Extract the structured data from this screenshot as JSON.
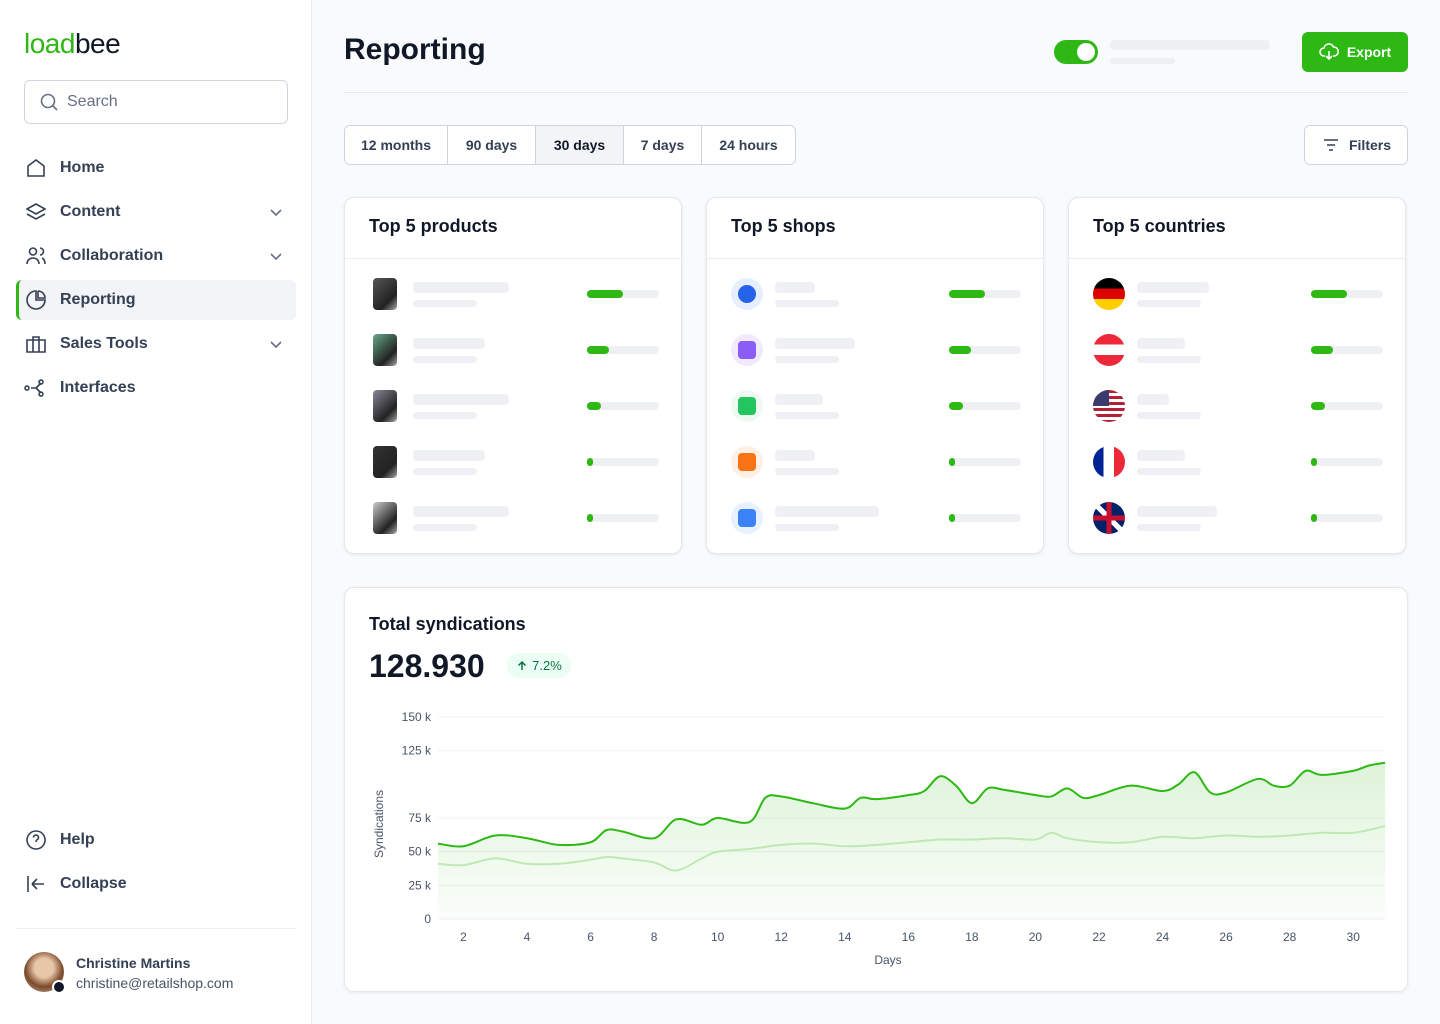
{
  "sidebar": {
    "logo_a": "load",
    "logo_b": "bee",
    "search": "Search",
    "nav": [
      "Home",
      "Content",
      "Collaboration",
      "Reporting",
      "Sales Tools",
      "Interfaces"
    ],
    "footer_nav": [
      "Help",
      "Collapse"
    ],
    "user": {
      "name": "Christine Martins",
      "email": "christine@retailshop.com"
    }
  },
  "header": {
    "title": "Reporting",
    "export": "Export"
  },
  "ranges": [
    "12 months",
    "90 days",
    "30 days",
    "7 days",
    "24 hours"
  ],
  "filters": "Filters",
  "cards": [
    "Top 5 products",
    "Top 5 shops",
    "Top 5 countries"
  ],
  "total": {
    "title": "Total syndications",
    "value": "128.930",
    "change": "7.2%"
  },
  "chart_data": {
    "type": "line",
    "ylabel": "Syndications",
    "xlabel": "Days",
    "xlim": [
      1.2,
      31
    ],
    "xticks": [
      2,
      4,
      6,
      8,
      10,
      12,
      14,
      16,
      18,
      20,
      22,
      24,
      26,
      28,
      30
    ],
    "ylim": [
      0,
      150000
    ],
    "yticks": [
      {
        "value": 0,
        "label": "0"
      },
      {
        "value": 25000,
        "label": "25 k"
      },
      {
        "value": 50000,
        "label": "50 k"
      },
      {
        "value": 75000,
        "label": "75 k"
      },
      {
        "value": 125000,
        "label": "125 k"
      },
      {
        "value": 150000,
        "label": "150 k"
      }
    ],
    "grid": true,
    "series": [
      {
        "color": "#2db814",
        "area": true,
        "x": [
          1.2,
          2,
          3,
          4,
          5,
          6,
          6.5,
          7,
          8,
          8.7,
          9.5,
          10,
          11,
          11.5,
          12,
          13,
          14,
          14.5,
          15,
          16,
          16.5,
          17,
          17.5,
          18,
          18.5,
          19,
          20,
          20.5,
          21,
          21.5,
          22,
          23,
          24,
          24.5,
          25,
          25.5,
          26,
          27,
          27.5,
          28,
          28.5,
          29,
          30,
          30.5,
          31
        ],
        "values": [
          56000,
          54000,
          62000,
          60000,
          55000,
          57000,
          66000,
          65000,
          60000,
          74000,
          70000,
          75000,
          72000,
          90000,
          91000,
          86000,
          82000,
          90000,
          89000,
          92000,
          95000,
          106000,
          99000,
          86000,
          97000,
          96000,
          92000,
          91000,
          97000,
          90000,
          92000,
          99000,
          95000,
          100000,
          109000,
          94000,
          94000,
          104000,
          99000,
          99000,
          110000,
          107000,
          110000,
          114000,
          116000
        ]
      },
      {
        "color": "#bfe8b3",
        "area": false,
        "x": [
          1.2,
          2,
          3,
          4,
          5,
          6,
          6.5,
          7,
          8,
          8.7,
          9.5,
          10,
          11,
          12,
          13,
          14,
          15,
          16,
          17,
          18,
          19,
          20,
          20.5,
          21,
          22,
          23,
          24,
          25,
          26,
          27,
          28,
          29,
          30,
          31
        ],
        "values": [
          41000,
          40000,
          45000,
          41000,
          41000,
          44000,
          46000,
          45000,
          42000,
          36000,
          45000,
          50000,
          52000,
          55000,
          56000,
          54000,
          55000,
          57000,
          59000,
          59000,
          60000,
          59000,
          64000,
          60000,
          57000,
          57000,
          61000,
          60000,
          62000,
          61000,
          62000,
          64000,
          64000,
          69000
        ]
      }
    ]
  }
}
